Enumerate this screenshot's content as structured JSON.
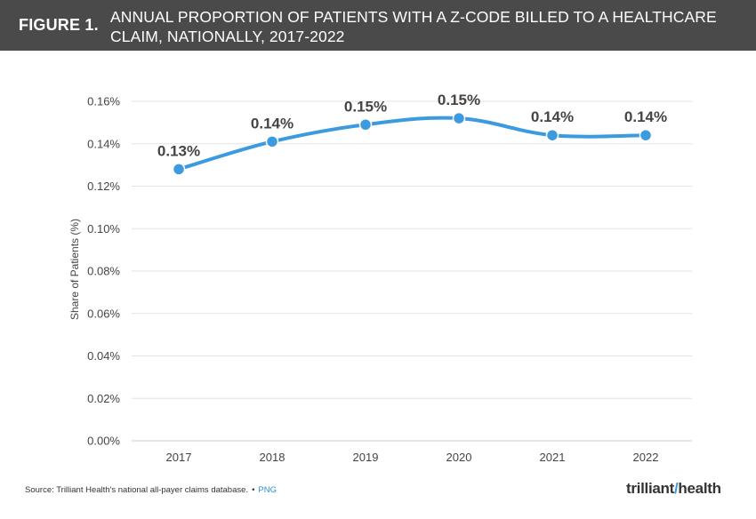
{
  "header": {
    "figure_label": "FIGURE 1.",
    "title_line1": "ANNUAL PROPORTION OF PATIENTS WITH A Z-CODE BILLED TO A HEALTHCARE",
    "title_line2": "CLAIM, NATIONALLY, 2017-2022"
  },
  "chart_data": {
    "type": "line",
    "title": "ANNUAL PROPORTION OF PATIENTS WITH A Z-CODE BILLED TO A HEALTHCARE CLAIM, NATIONALLY, 2017-2022",
    "categories": [
      "2017",
      "2018",
      "2019",
      "2020",
      "2021",
      "2022"
    ],
    "values": [
      0.128,
      0.141,
      0.149,
      0.152,
      0.144,
      0.144
    ],
    "data_labels": [
      "0.13%",
      "0.14%",
      "0.15%",
      "0.15%",
      "0.14%",
      "0.14%"
    ],
    "xlabel": "",
    "ylabel": "Share of Patients (%)",
    "ylim": [
      0,
      0.16
    ],
    "yticks": [
      0,
      0.02,
      0.04,
      0.06,
      0.08,
      0.1,
      0.12,
      0.14,
      0.16
    ],
    "ytick_labels": [
      "0.00%",
      "0.02%",
      "0.04%",
      "0.06%",
      "0.08%",
      "0.10%",
      "0.12%",
      "0.14%",
      "0.16%"
    ],
    "grid": true,
    "legend": "none",
    "line_color": "#3c9be0"
  },
  "footer": {
    "source": "Source: Trilliant Health's national all-payer claims database.",
    "separator": "•",
    "link": "PNG",
    "brand_part1": "trilliant",
    "brand_part2": "health"
  }
}
